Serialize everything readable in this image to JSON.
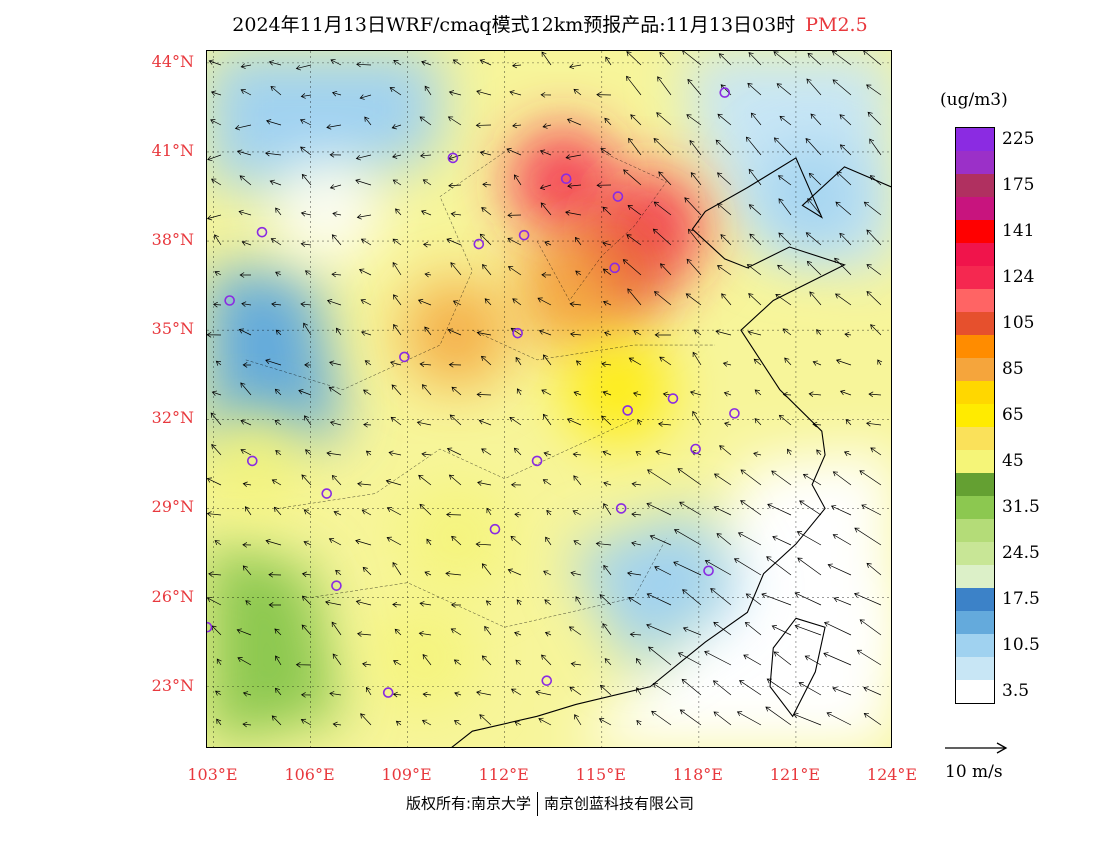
{
  "title": {
    "main": "2024年11月13日WRF/cmaq模式12km预报产品:11月13日03时",
    "pollutant": "PM2.5"
  },
  "map": {
    "lat_labels": [
      "44°N",
      "41°N",
      "38°N",
      "35°N",
      "32°N",
      "29°N",
      "26°N",
      "23°N"
    ],
    "lon_labels": [
      "103°E",
      "106°E",
      "109°E",
      "112°E",
      "115°E",
      "118°E",
      "121°E",
      "124°E"
    ],
    "lat_range": [
      20.9,
      44.4
    ],
    "lon_range": [
      102.8,
      124.0
    ],
    "station_color": "#8a2be2",
    "pollution_field": [
      {
        "lat": 40.0,
        "lon": 113.8,
        "level": "124"
      },
      {
        "lat": 38.5,
        "lon": 116.5,
        "level": "124"
      },
      {
        "lat": 37.0,
        "lon": 115.3,
        "level": "105"
      },
      {
        "lat": 36.2,
        "lon": 114.0,
        "level": "85"
      },
      {
        "lat": 34.9,
        "lon": 110.5,
        "level": "85"
      },
      {
        "lat": 33.0,
        "lon": 115.5,
        "level": "65"
      },
      {
        "lat": 30.5,
        "lon": 104.2,
        "level": "45"
      },
      {
        "lat": 28.0,
        "lon": 110.5,
        "level": "45"
      },
      {
        "lat": 24.0,
        "lon": 109.5,
        "level": "45"
      },
      {
        "lat": 39.0,
        "lon": 106.5,
        "level": "3.5"
      },
      {
        "lat": 39.5,
        "lon": 121.5,
        "level": "10.5"
      },
      {
        "lat": 25.0,
        "lon": 122.0,
        "level": "3.5"
      }
    ]
  },
  "legend": {
    "unit": "(ug/m3)",
    "colors": [
      "#8b2be2",
      "#9b30c8",
      "#b03060",
      "#c8147e",
      "#ff0000",
      "#f0144b",
      "#f52850",
      "#ff6464",
      "#e6502d",
      "#ff8c00",
      "#f5a53c",
      "#ffd700",
      "#ffeb00",
      "#fae15a",
      "#f5f578",
      "#64a032",
      "#8cc850",
      "#b4dc78",
      "#c8e696",
      "#dcf0c8",
      "#3c82c8",
      "#64aadc",
      "#a0d2f0",
      "#c8e6f5",
      "#ffffff"
    ],
    "ticks": [
      {
        "label": "225",
        "index": 1
      },
      {
        "label": "175",
        "index": 3
      },
      {
        "label": "141",
        "index": 5
      },
      {
        "label": "124",
        "index": 7
      },
      {
        "label": "105",
        "index": 9
      },
      {
        "label": "85",
        "index": 11
      },
      {
        "label": "65",
        "index": 13
      },
      {
        "label": "45",
        "index": 15
      },
      {
        "label": "31.5",
        "index": 17
      },
      {
        "label": "24.5",
        "index": 19
      },
      {
        "label": "17.5",
        "index": 21
      },
      {
        "label": "10.5",
        "index": 23
      },
      {
        "label": "3.5",
        "index": 25
      }
    ]
  },
  "wind_reference": {
    "label": "10 m/s"
  },
  "footer": {
    "left": "版权所有:南京大学",
    "right": "南京创蓝科技有限公司"
  }
}
